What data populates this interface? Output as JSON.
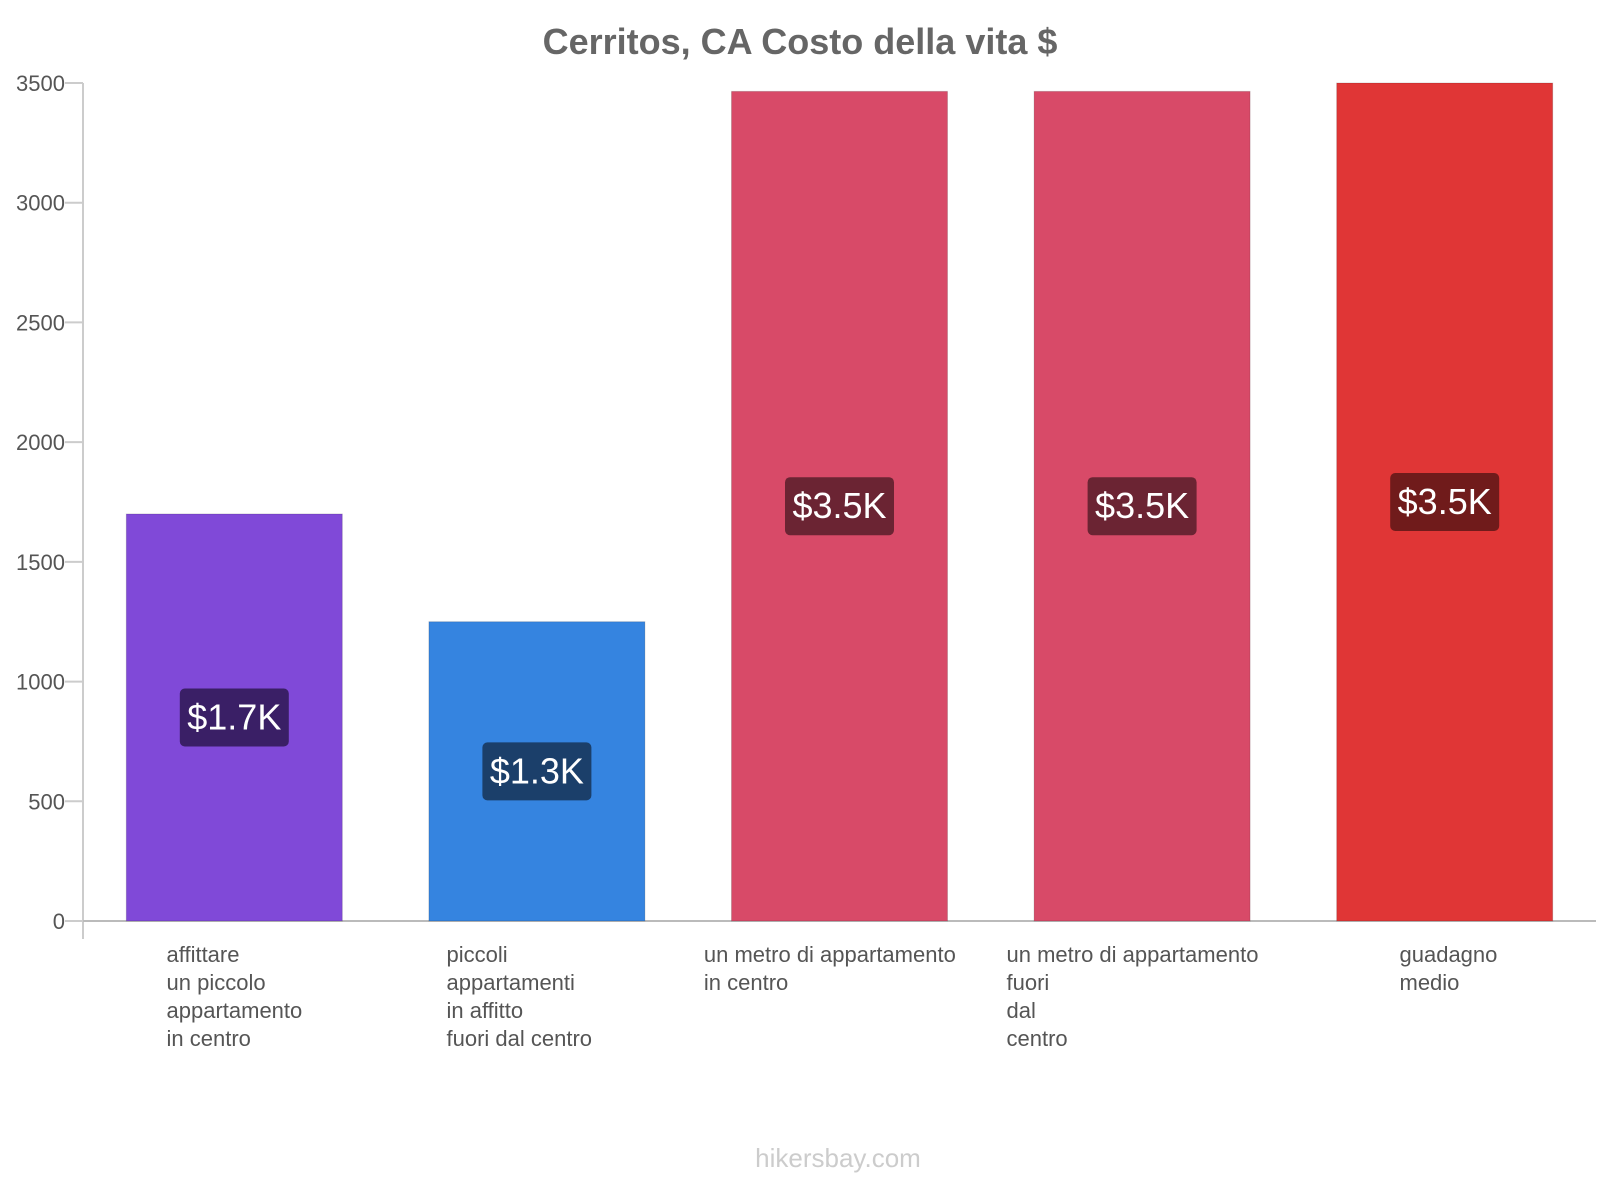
{
  "chart_data": {
    "type": "bar",
    "title": "Cerritos, CA Costo della vita $",
    "xlabel": "",
    "ylabel": "",
    "ylim": [
      0,
      3500
    ],
    "yticks": [
      0,
      500,
      1000,
      1500,
      2000,
      2500,
      3000,
      3500
    ],
    "grid": false,
    "categories": [
      [
        "affittare",
        "un piccolo",
        "appartamento",
        "in centro"
      ],
      [
        "piccoli",
        "appartamenti",
        "in affitto",
        "fuori dal centro"
      ],
      [
        "un metro di appartamento",
        "in centro"
      ],
      [
        "un metro di appartamento",
        "fuori",
        "dal",
        "centro"
      ],
      [
        "guadagno",
        "medio"
      ]
    ],
    "values": [
      1700,
      1250,
      3465,
      3465,
      3500
    ],
    "data_labels": [
      "$1.7K",
      "$1.3K",
      "$3.5K",
      "$3.5K",
      "$3.5K"
    ],
    "colors": [
      "#8049d8",
      "#3584e0",
      "#d84a68",
      "#d84a68",
      "#e03636"
    ],
    "label_bg_colors": [
      "#3a1f66",
      "#1b3f6a",
      "#6b2433",
      "#6b2433",
      "#701b1b"
    ]
  },
  "footer": {
    "source": "hikersbay.com"
  }
}
